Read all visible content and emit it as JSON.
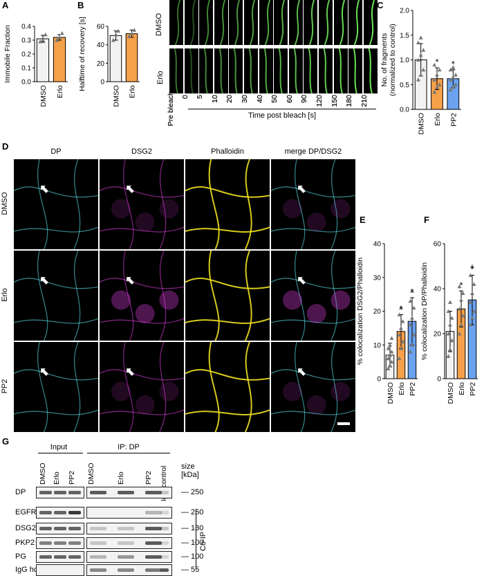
{
  "panels": {
    "A": "A",
    "B": "B",
    "C": "C",
    "D": "D",
    "E": "E",
    "F": "F",
    "G": "G"
  },
  "colors": {
    "dmso": "#f2f2f2",
    "erlo": "#f5a04a",
    "pp2": "#6aa2f0",
    "edge": "#000000",
    "point": "#777777",
    "cyan": "#5fe3f0",
    "magenta": "#e040e0",
    "yellow": "#f0e020"
  },
  "chart_data": [
    {
      "panel": "A",
      "type": "bar",
      "categories": [
        "DMSO",
        "Erlo"
      ],
      "values": [
        0.31,
        0.32
      ],
      "errors": [
        0.025,
        0.02
      ],
      "points": [
        [
          0.29,
          0.3,
          0.34
        ],
        [
          0.3,
          0.32,
          0.35
        ]
      ],
      "ylabel": "Immobile Fraction",
      "ylim": [
        0,
        0.4
      ],
      "yticks": [
        "0.0",
        "0.1",
        "0.2",
        "0.3",
        "0.4"
      ],
      "sig": [
        "",
        ""
      ]
    },
    {
      "panel": "B",
      "type": "bar",
      "categories": [
        "DMSO",
        "Erlo"
      ],
      "values": [
        50,
        52
      ],
      "errors": [
        5,
        4
      ],
      "points": [
        [
          45,
          51,
          55
        ],
        [
          49,
          52,
          56
        ]
      ],
      "ylabel": "Halftime of recovery [s]",
      "ylim": [
        0,
        60
      ],
      "yticks": [
        "0",
        "20",
        "40",
        "60"
      ],
      "sig": [
        "",
        ""
      ]
    },
    {
      "panel": "C",
      "type": "bar",
      "categories": [
        "DMSO",
        "Erlo",
        "PP2"
      ],
      "values": [
        1.0,
        0.62,
        0.62
      ],
      "errors": [
        0.33,
        0.22,
        0.18
      ],
      "points": [
        [
          0.6,
          0.7,
          0.8,
          1.0,
          1.1,
          1.2,
          1.35,
          1.45
        ],
        [
          0.35,
          0.45,
          0.5,
          0.6,
          0.7,
          0.8,
          0.9
        ],
        [
          0.4,
          0.45,
          0.5,
          0.6,
          0.65,
          0.7,
          0.8,
          0.85
        ]
      ],
      "ylabel": "No. of fragments (normalized to control)",
      "ylim": [
        0,
        2.0
      ],
      "yticks": [
        "0.0",
        "0.5",
        "1.0",
        "1.5",
        "2.0"
      ],
      "sig": [
        "",
        "*",
        "*"
      ]
    },
    {
      "panel": "E",
      "type": "bar",
      "categories": [
        "DMSO",
        "Erlo",
        "PP2"
      ],
      "values": [
        7,
        14,
        17
      ],
      "errors": [
        3.5,
        5,
        7
      ],
      "points": [
        [
          3,
          4,
          5,
          6,
          7,
          8,
          9,
          10,
          12
        ],
        [
          6,
          9,
          11,
          13,
          15,
          17,
          19,
          21
        ],
        [
          8,
          10,
          13,
          16,
          18,
          21,
          23,
          26
        ]
      ],
      "ylabel": "% colocalization DSG2/Phalloidin",
      "ylim": [
        0,
        40
      ],
      "yticks": [
        "0",
        "10",
        "20",
        "30",
        "40"
      ],
      "sig": [
        "",
        "*",
        "*"
      ]
    },
    {
      "panel": "F",
      "type": "bar",
      "categories": [
        "DMSO",
        "Erlo",
        "PP2"
      ],
      "values": [
        21,
        31,
        35
      ],
      "errors": [
        9,
        8,
        11
      ],
      "points": [
        [
          10,
          13,
          17,
          20,
          24,
          27,
          30,
          34
        ],
        [
          20,
          24,
          28,
          31,
          35,
          38,
          41
        ],
        [
          24,
          27,
          30,
          34,
          38,
          42,
          46,
          50
        ]
      ],
      "ylabel": "% colocalization DP/Phalloidin",
      "ylim": [
        0,
        60
      ],
      "yticks": [
        "0",
        "20",
        "40",
        "60"
      ],
      "sig": [
        "",
        "*",
        "*"
      ]
    }
  ],
  "panelB_images": {
    "rows": [
      "DMSO",
      "Erlo"
    ],
    "timepoints": [
      "Pre bleach",
      "0",
      "5",
      "10",
      "20",
      "30",
      "40",
      "50",
      "60",
      "90",
      "120",
      "150",
      "180",
      "210"
    ],
    "xlabel": "Time post bleach [s]"
  },
  "panelD": {
    "columns": [
      "DP",
      "DSG2",
      "Phalloidin",
      "merge DP/DSG2"
    ],
    "rows": [
      "DMSO",
      "Erlo",
      "PP2"
    ]
  },
  "panelG": {
    "input_label": "Input",
    "ip_label": "IP: DP",
    "lanes_input": [
      "DMSO",
      "Erlo",
      "PP2"
    ],
    "lanes_ip": [
      "DMSO",
      "Erlo",
      "PP2",
      "IgG control"
    ],
    "size_header": "size\n[kDa]",
    "rows": [
      {
        "name": "DP",
        "size": "250"
      },
      {
        "name": "EGFR",
        "size": "250"
      },
      {
        "name": "DSG2",
        "size": "130"
      },
      {
        "name": "PKP2",
        "size": "100"
      },
      {
        "name": "PG",
        "size": "100"
      },
      {
        "name": "IgG hc",
        "size": "55"
      }
    ],
    "coip_label": "Co-IP"
  }
}
